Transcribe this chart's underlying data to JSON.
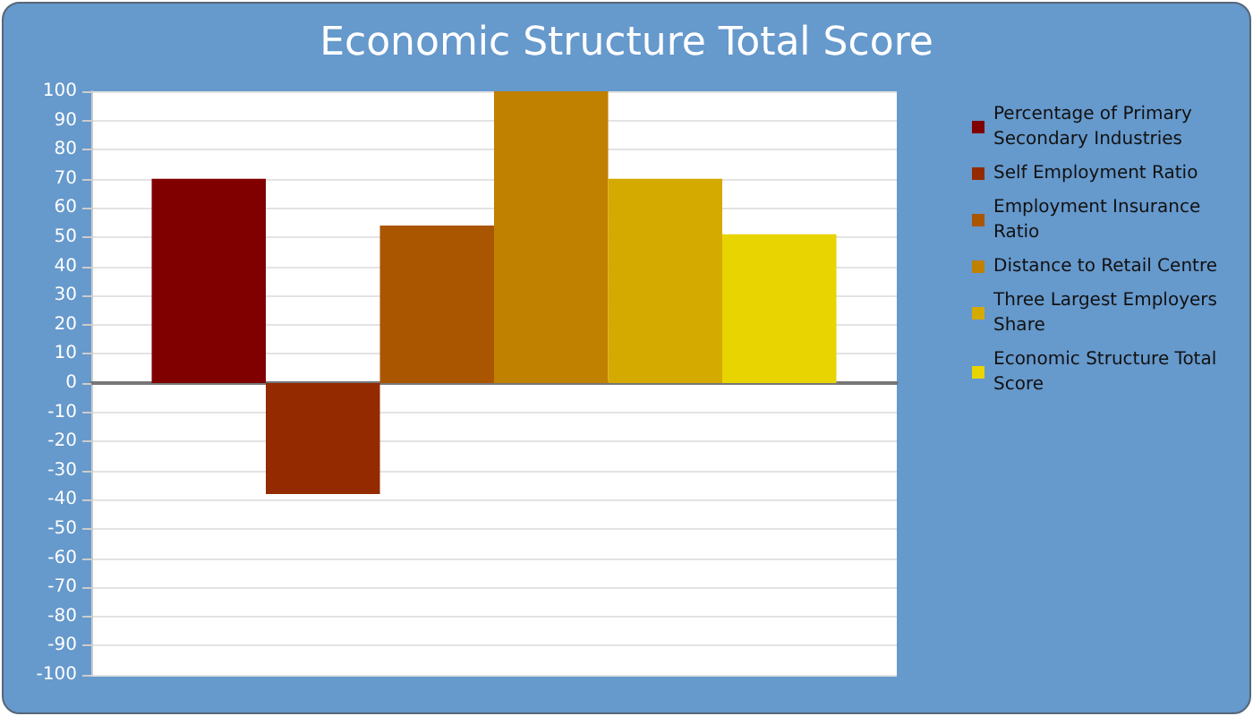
{
  "chart_data": {
    "type": "bar",
    "title": "Economic Structure Total Score",
    "categories": [
      null
    ],
    "series": [
      {
        "name": "Percentage of Primary Secondary Industries",
        "color": "#800000",
        "values": [
          70
        ]
      },
      {
        "name": "Self Employment Ratio",
        "color": "#942a00",
        "values": [
          -38
        ]
      },
      {
        "name": "Employment Insurance Ratio",
        "color": "#aa5500",
        "values": [
          54
        ]
      },
      {
        "name": "Distance to Retail Centre",
        "color": "#c08000",
        "values": [
          100
        ]
      },
      {
        "name": "Three Largest Employers Share",
        "color": "#d4aa00",
        "values": [
          70
        ]
      },
      {
        "name": "Economic Structure Total Score",
        "color": "#e8d400",
        "values": [
          51
        ]
      }
    ],
    "ylim": [
      -100,
      100
    ],
    "yticks": [
      -100,
      -90,
      -80,
      -70,
      -60,
      -50,
      -40,
      -30,
      -20,
      -10,
      0,
      10,
      20,
      30,
      40,
      50,
      60,
      70,
      80,
      90,
      100
    ],
    "grid": "y",
    "legend": "right"
  }
}
